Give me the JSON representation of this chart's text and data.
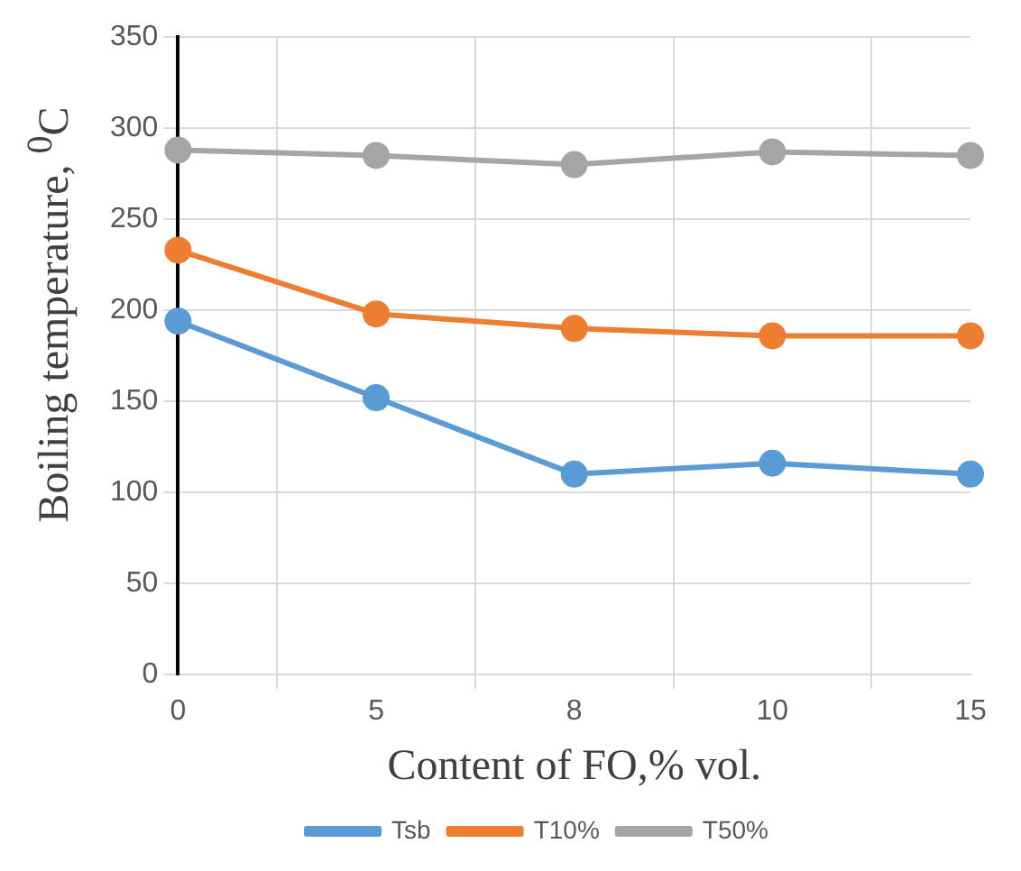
{
  "chart_data": {
    "type": "line",
    "xlabel": "Content of FO,% vol.",
    "ylabel": "Boiling temperature, $^{0}$C",
    "categories": [
      "0",
      "5",
      "8",
      "10",
      "15"
    ],
    "series": [
      {
        "name": "Tsb",
        "color": "#5b9bd5",
        "values": [
          194,
          152,
          110,
          116,
          110
        ]
      },
      {
        "name": "T10%",
        "color": "#ed7d31",
        "values": [
          233,
          198,
          190,
          186,
          186
        ]
      },
      {
        "name": "T50%",
        "color": "#a5a5a5",
        "values": [
          288,
          285,
          280,
          287,
          285
        ]
      }
    ],
    "ylim": [
      0,
      350
    ],
    "yticks": [
      0,
      50,
      100,
      150,
      200,
      250,
      300,
      350
    ],
    "grid": true,
    "legend": "bottom",
    "marker": "circle",
    "line_style": "solid"
  }
}
